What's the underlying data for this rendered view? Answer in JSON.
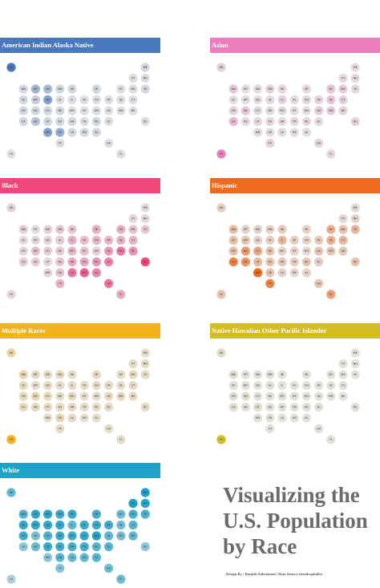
{
  "title": [
    "Visualizing the",
    "U.S. Population",
    "by Race"
  ],
  "footer": "Design By : Ranjith Subramani | Data Source:visualcapitalist",
  "states": [
    "AK",
    "ME",
    "VT",
    "NH",
    "WA",
    "MT",
    "ND",
    "MN",
    "WI",
    "MI",
    "NY",
    "MA",
    "RI",
    "ID",
    "WY",
    "SD",
    "IA",
    "IL",
    "IN",
    "OH",
    "PA",
    "NJ",
    "CT",
    "OR",
    "NV",
    "CO",
    "NE",
    "MO",
    "KY",
    "WV",
    "VA",
    "MD",
    "DE",
    "CA",
    "AZ",
    "UT",
    "KS",
    "AR",
    "TN",
    "NC",
    "SC",
    "DC",
    "NM",
    "OK",
    "LA",
    "MS",
    "AL",
    "TX",
    "GA",
    "HI",
    "FL"
  ],
  "chart_data": [
    {
      "type": "tilemap",
      "title": "American Indian Alaska Native",
      "color": "#4a78bd",
      "values": [
        15,
        1,
        0,
        0,
        1,
        6,
        5,
        1,
        1,
        1,
        0,
        0,
        1,
        1,
        2,
        9,
        0,
        0,
        0,
        0,
        0,
        0,
        0,
        1,
        1,
        1,
        1,
        0,
        0,
        0,
        0,
        0,
        0,
        1,
        4,
        1,
        1,
        1,
        0,
        1,
        0,
        0,
        9,
        7,
        1,
        1,
        1,
        0,
        0,
        0,
        0
      ]
    },
    {
      "type": "tilemap",
      "title": "Asian",
      "color": "#ee7dbd",
      "values": [
        6,
        1,
        2,
        3,
        9,
        1,
        2,
        5,
        3,
        3,
        9,
        7,
        3,
        1,
        1,
        1,
        3,
        6,
        2,
        2,
        4,
        10,
        5,
        5,
        9,
        3,
        3,
        2,
        2,
        1,
        7,
        7,
        4,
        15,
        3,
        3,
        3,
        2,
        2,
        3,
        2,
        4,
        2,
        2,
        2,
        1,
        1,
        5,
        4,
        37,
        3
      ]
    },
    {
      "type": "tilemap",
      "title": "Black",
      "color": "#f0467a",
      "values": [
        3,
        1,
        1,
        1,
        4,
        0,
        3,
        6,
        6,
        13,
        14,
        7,
        6,
        1,
        1,
        2,
        4,
        14,
        9,
        12,
        11,
        13,
        11,
        2,
        9,
        4,
        5,
        11,
        8,
        3,
        19,
        30,
        22,
        5,
        4,
        1,
        6,
        15,
        16,
        21,
        26,
        46,
        2,
        7,
        32,
        38,
        26,
        12,
        31,
        2,
        15
      ]
    },
    {
      "type": "tilemap",
      "title": "Hispanic",
      "color": "#ee6a1d",
      "values": [
        7,
        2,
        2,
        4,
        13,
        4,
        4,
        5,
        7,
        5,
        19,
        12,
        16,
        13,
        10,
        4,
        6,
        17,
        7,
        4,
        8,
        20,
        16,
        13,
        29,
        22,
        11,
        4,
        4,
        2,
        10,
        10,
        9,
        39,
        31,
        14,
        12,
        8,
        6,
        10,
        6,
        11,
        49,
        11,
        5,
        3,
        4,
        39,
        10,
        11,
        26
      ]
    },
    {
      "type": "tilemap",
      "title": "Multiple Races",
      "color": "#f3b320",
      "values": [
        7,
        2,
        2,
        2,
        5,
        3,
        2,
        3,
        2,
        3,
        2,
        3,
        3,
        3,
        2,
        3,
        2,
        2,
        2,
        3,
        2,
        2,
        3,
        4,
        5,
        3,
        2,
        3,
        2,
        2,
        3,
        3,
        3,
        4,
        3,
        3,
        3,
        3,
        2,
        2,
        2,
        3,
        2,
        6,
        2,
        1,
        2,
        2,
        2,
        24,
        2
      ]
    },
    {
      "type": "tilemap",
      "title": "Native Hawaiian Other Pacific Islander",
      "color": "#d2bd25",
      "values": [
        1.3,
        0,
        0,
        0,
        0.7,
        0.1,
        0.1,
        0.1,
        0,
        0,
        0,
        0,
        0,
        0.2,
        0.1,
        0,
        0.1,
        0,
        0,
        0,
        0,
        0,
        0,
        0.4,
        0.7,
        0.1,
        0.1,
        0.1,
        0.1,
        0,
        0.1,
        0,
        0,
        0.4,
        0.2,
        0.9,
        0.1,
        0.3,
        0.1,
        0.1,
        0.1,
        0.1,
        0.1,
        0.2,
        0,
        0,
        0,
        0.1,
        0.1,
        10,
        0.1
      ]
    },
    {
      "type": "tilemap",
      "title": "White",
      "color": "#20a1c9",
      "values": [
        60,
        93,
        93,
        90,
        68,
        86,
        84,
        79,
        81,
        75,
        55,
        71,
        72,
        82,
        84,
        82,
        85,
        61,
        79,
        79,
        76,
        55,
        66,
        75,
        49,
        68,
        79,
        79,
        84,
        92,
        61,
        50,
        62,
        37,
        55,
        78,
        76,
        72,
        74,
        63,
        64,
        37,
        37,
        65,
        59,
        57,
        65,
        42,
        52,
        22,
        54
      ]
    }
  ]
}
